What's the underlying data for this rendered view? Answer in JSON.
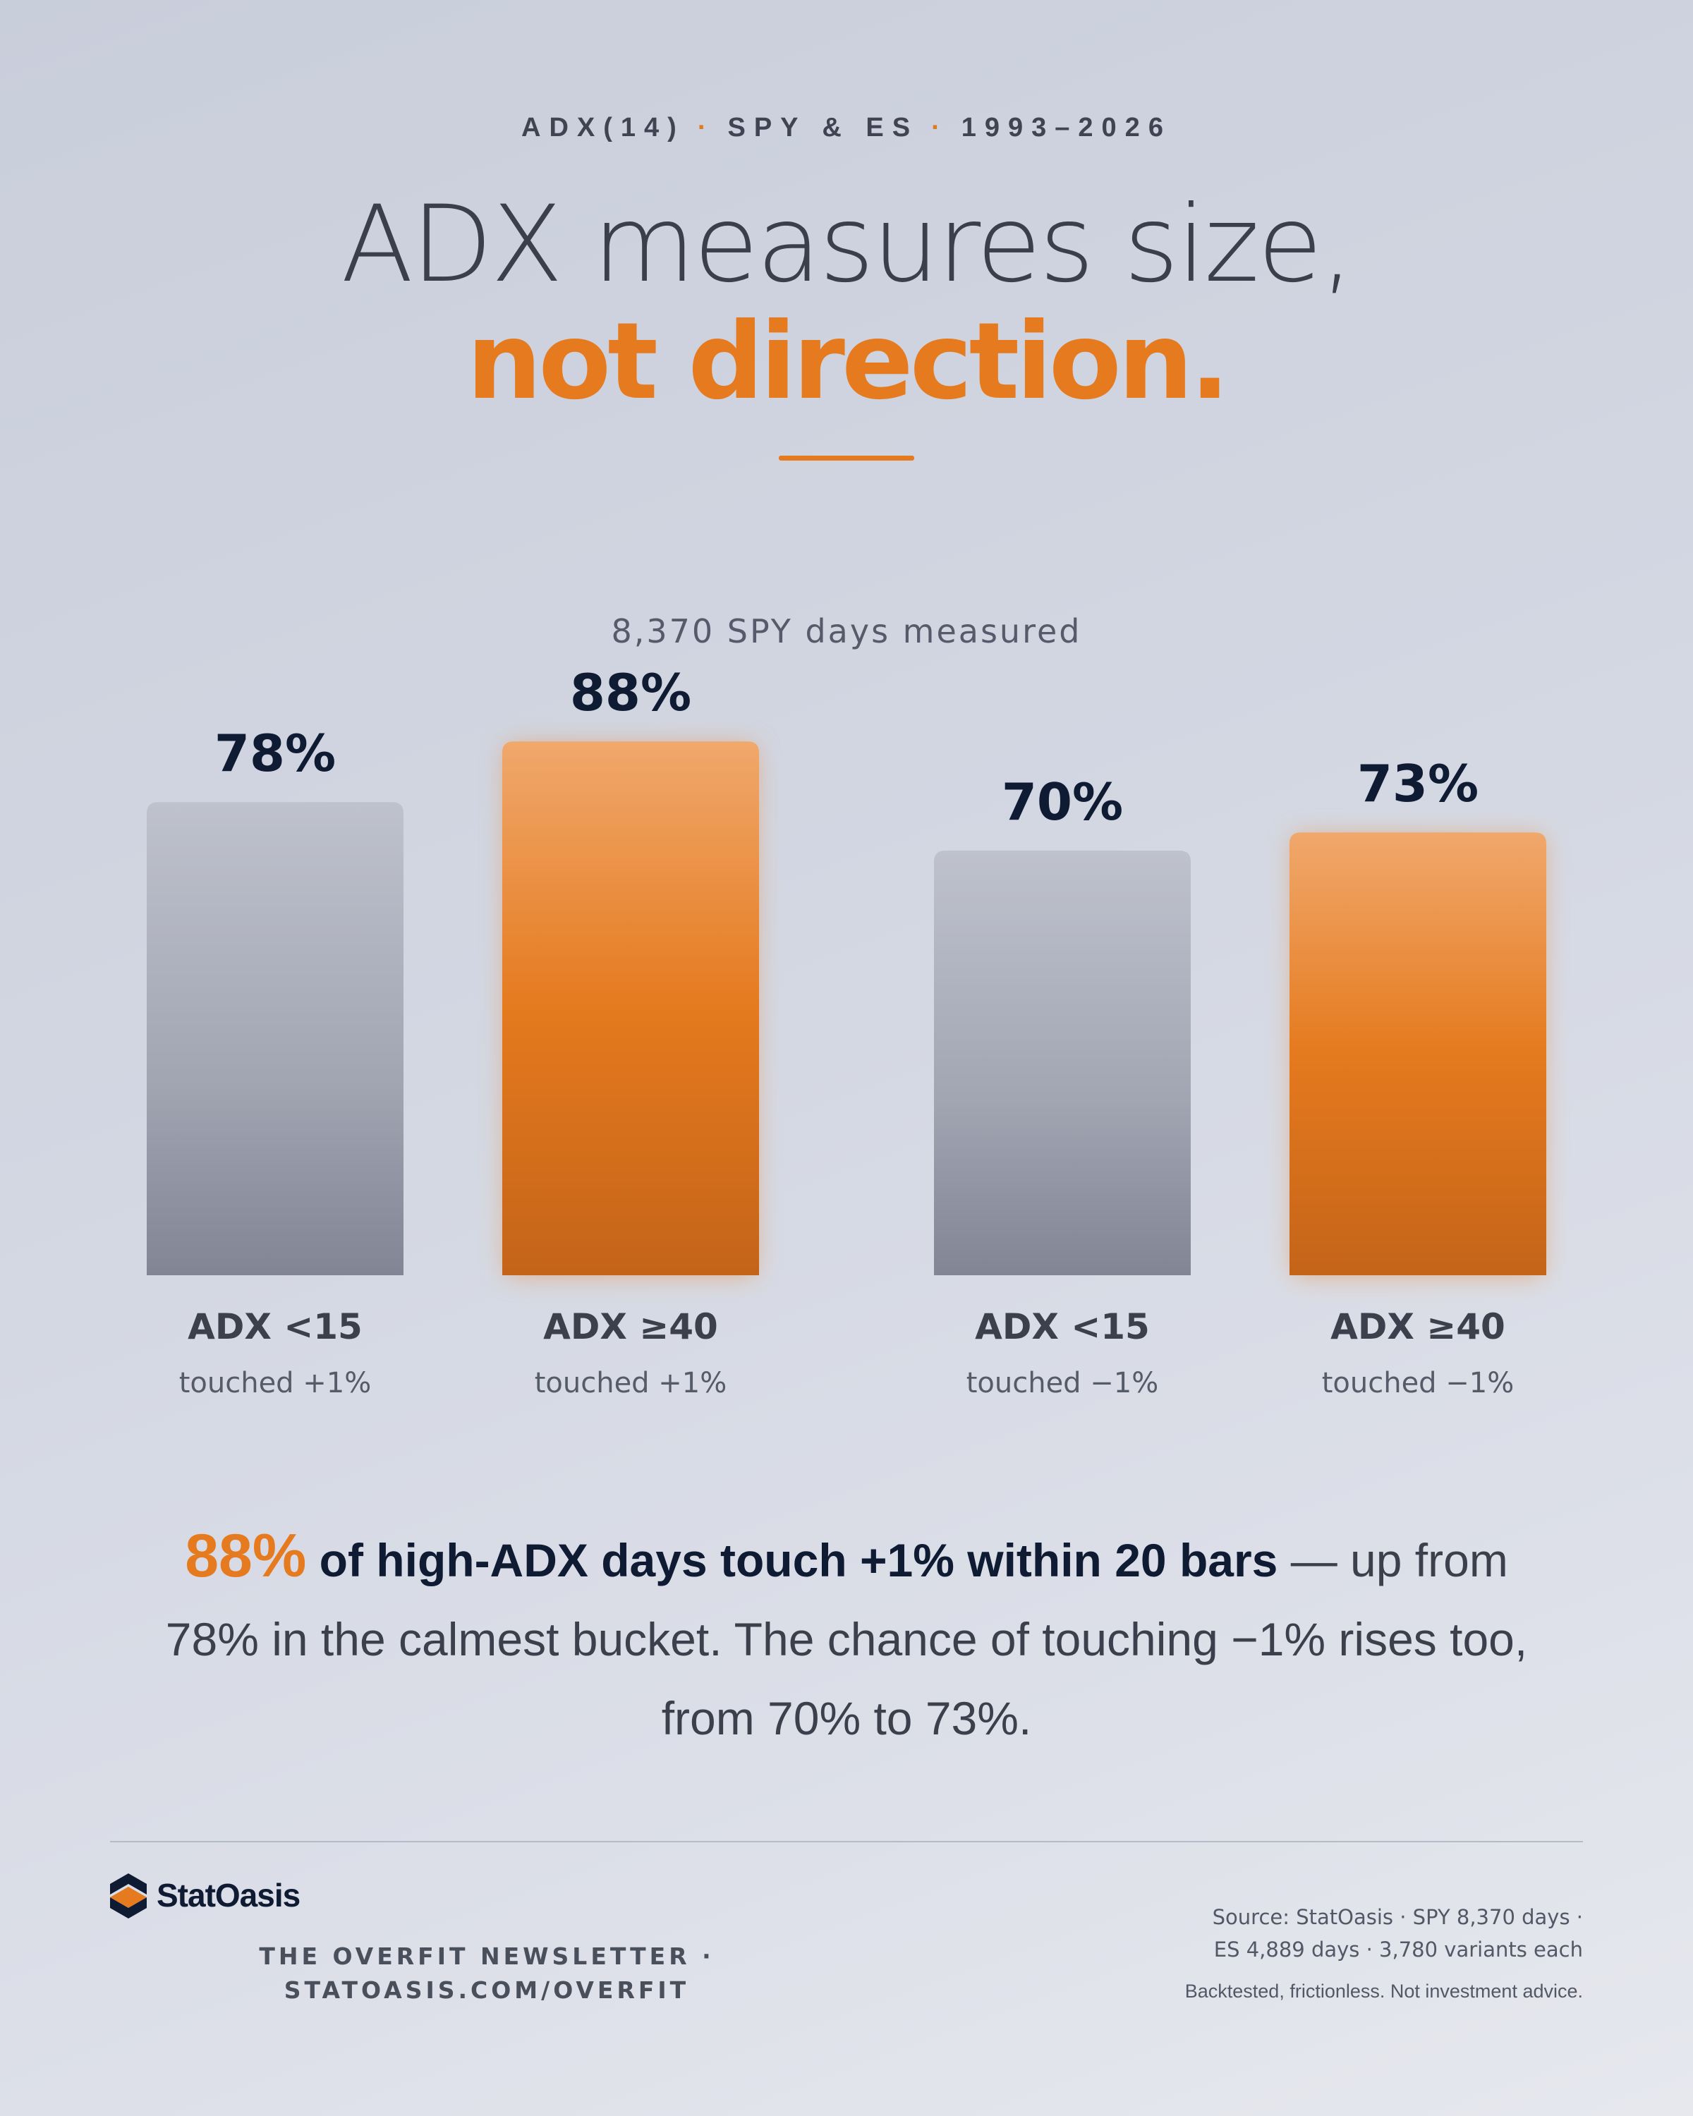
{
  "header": {
    "eyebrow": [
      "ADX(14)",
      "SPY & ES",
      "1993–2026"
    ],
    "title_line1": "ADX measures size,",
    "title_line2": "not direction."
  },
  "chart_data": {
    "type": "bar",
    "subtitle": "8,370 SPY days measured",
    "categories": [
      {
        "label": "ADX <15",
        "sub": "touched +1%"
      },
      {
        "label": "ADX ≥40",
        "sub": "touched +1%"
      },
      {
        "label": "ADX <15",
        "sub": "touched −1%"
      },
      {
        "label": "ADX ≥40",
        "sub": "touched −1%"
      }
    ],
    "values": [
      78,
      88,
      70,
      73
    ],
    "value_labels": [
      "78%",
      "88%",
      "70%",
      "73%"
    ],
    "groups": [
      "gray",
      "orange",
      "gray",
      "orange"
    ],
    "colors": {
      "gray": "#a4a8b6",
      "orange": "#e57a1e",
      "label": "#0f1b33"
    },
    "ylim": [
      0,
      100
    ],
    "grid": false,
    "legend": "none"
  },
  "summary": {
    "highlight": "88%",
    "bold": " of high-ADX days touch +1% within 20 bars",
    "rest": " — up from 78% in the calmest bucket. The chance of touching −1% rises too, from 70% to 73%."
  },
  "footer": {
    "brand": "StatOasis",
    "newsletter_line1": "THE OVERFIT NEWSLETTER ·",
    "newsletter_line2": "STATOASIS.COM/OVERFIT",
    "source_line1": "Source: StatOasis · SPY 8,370 days ·",
    "source_line2": "ES 4,889 days · 3,780 variants each",
    "disclaimer": "Backtested, frictionless. Not investment advice."
  }
}
